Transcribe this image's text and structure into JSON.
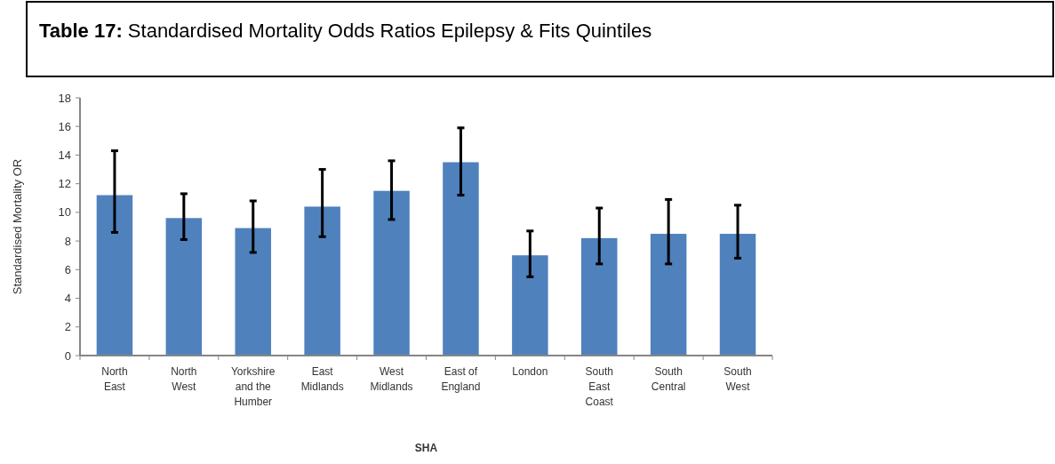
{
  "chart_data": {
    "type": "bar",
    "title": "Table 17: Standardised Mortality Odds Ratios Epilepsy & Fits Quintiles",
    "xlabel": "SHA",
    "ylabel": "Standardised Mortality OR",
    "categories": [
      "North East",
      "North West",
      "Yorkshire and the Humber",
      "East Midlands",
      "West Midlands",
      "East of England",
      "London",
      "South East Coast",
      "South Central",
      "South West"
    ],
    "values": [
      11.2,
      9.6,
      8.9,
      10.4,
      11.5,
      13.5,
      7.0,
      8.2,
      8.5,
      8.5
    ],
    "errors": [
      [
        8.6,
        14.3
      ],
      [
        8.1,
        11.3
      ],
      [
        7.2,
        10.8
      ],
      [
        8.3,
        13.0
      ],
      [
        9.5,
        13.6
      ],
      [
        11.2,
        15.9
      ],
      [
        5.5,
        8.7
      ],
      [
        6.4,
        10.3
      ],
      [
        6.4,
        10.9
      ],
      [
        6.8,
        10.5
      ]
    ],
    "color": "#4f81bd",
    "ylim": [
      0,
      18
    ],
    "yticks": [
      0,
      2,
      4,
      6,
      8,
      10,
      12,
      14,
      16,
      18
    ],
    "grid": false
  }
}
